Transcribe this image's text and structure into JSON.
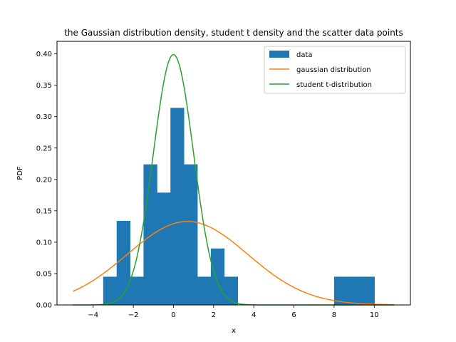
{
  "chart_data": {
    "type": "bar",
    "title": "the Gaussian distribution density, student t density and the scatter data points",
    "xlabel": "x",
    "ylabel": "PDF",
    "xlim": [
      -5.8,
      11.8
    ],
    "ylim": [
      0.0,
      0.42
    ],
    "xticks": [
      -4,
      -2,
      0,
      2,
      4,
      6,
      8,
      10
    ],
    "xtick_labels": [
      "−4",
      "−2",
      "0",
      "2",
      "4",
      "6",
      "8",
      "10"
    ],
    "yticks": [
      0.0,
      0.05,
      0.1,
      0.15,
      0.2,
      0.25,
      0.3,
      0.35,
      0.4
    ],
    "ytick_labels": [
      "0.00",
      "0.05",
      "0.10",
      "0.15",
      "0.20",
      "0.25",
      "0.30",
      "0.35",
      "0.40"
    ],
    "grid": false,
    "legend_position": "top-right",
    "histogram": {
      "name": "data",
      "color": "#1f77b4",
      "bins": [
        {
          "x0": -3.5,
          "x1": -2.83,
          "value": 0.045
        },
        {
          "x0": -2.83,
          "x1": -2.16,
          "value": 0.134
        },
        {
          "x0": -2.16,
          "x1": -1.49,
          "value": 0.045
        },
        {
          "x0": -1.49,
          "x1": -0.82,
          "value": 0.224
        },
        {
          "x0": -0.82,
          "x1": -0.15,
          "value": 0.179
        },
        {
          "x0": -0.15,
          "x1": 0.52,
          "value": 0.314
        },
        {
          "x0": 0.52,
          "x1": 1.19,
          "value": 0.224
        },
        {
          "x0": 1.19,
          "x1": 1.86,
          "value": 0.045
        },
        {
          "x0": 1.86,
          "x1": 2.53,
          "value": 0.09
        },
        {
          "x0": 2.53,
          "x1": 3.2,
          "value": 0.045
        },
        {
          "x0": 8.0,
          "x1": 8.67,
          "value": 0.045
        },
        {
          "x0": 8.67,
          "x1": 9.34,
          "value": 0.045
        },
        {
          "x0": 9.34,
          "x1": 10.01,
          "value": 0.045
        }
      ]
    },
    "series": [
      {
        "name": "gaussian distribution",
        "type": "line",
        "color": "#ff7f0e",
        "mean": 0.7,
        "std": 3.0,
        "x_range": [
          -5,
          11
        ]
      },
      {
        "name": "student t-distribution",
        "type": "line",
        "color": "#2ca02c",
        "mean": 0.0,
        "std": 1.0,
        "x_range": [
          -5,
          11
        ]
      }
    ]
  }
}
